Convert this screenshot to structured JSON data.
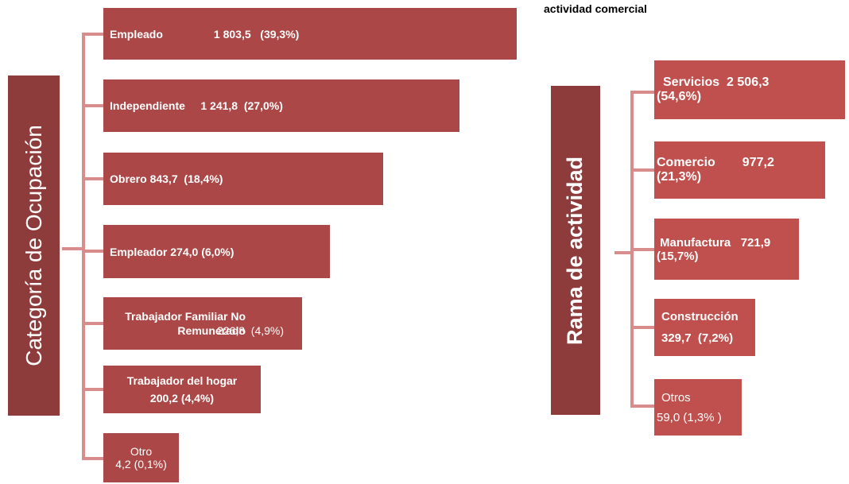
{
  "title": "actividad comercial",
  "left": {
    "label": "Categoría de Ocupación",
    "items": [
      {
        "name": "Empleado",
        "value": "1 803,5",
        "share": "(39,3%)"
      },
      {
        "name": "Independiente",
        "value": "1 241,8",
        "share": "(27,0%)"
      },
      {
        "name": "Obrero",
        "value": "843,7",
        "share": "(18,4%)"
      },
      {
        "name": "Empleador",
        "value": "274,0",
        "share": "(6,0%)"
      },
      {
        "name": "Trabajador Familiar No Remunerado",
        "value": "226,8",
        "share": "(4,9%)"
      },
      {
        "name": "Trabajador del hogar",
        "value": "200,2",
        "share": "(4,4%)"
      },
      {
        "name": "Otro",
        "value": "4,2",
        "share": "(0,1%)"
      }
    ]
  },
  "right": {
    "label": "Rama de actividad",
    "items": [
      {
        "name": "Servicios",
        "value": "2 506,3",
        "share": "(54,6%)"
      },
      {
        "name": "Comercio",
        "value": "977,2",
        "share": "(21,3%)"
      },
      {
        "name": "Manufactura",
        "value": "721,9",
        "share": "(15,7%)"
      },
      {
        "name": "Construcción",
        "value": "329,7",
        "share": "(7,2%)"
      },
      {
        "name": "Otros",
        "value": "59,0",
        "share": "(1,3% )"
      }
    ]
  }
}
